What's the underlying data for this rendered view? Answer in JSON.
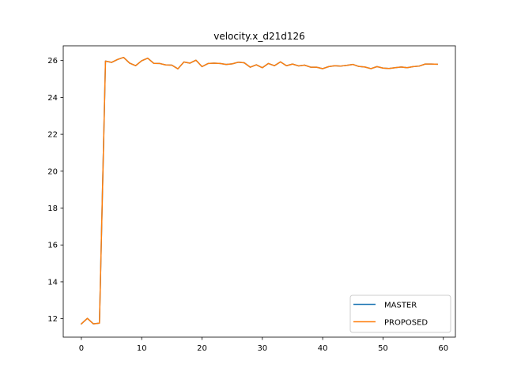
{
  "chart_data": {
    "type": "line",
    "title": "velocity.x_d21d126",
    "xlabel": "",
    "ylabel": "",
    "xlim": [
      -3,
      62
    ],
    "ylim": [
      11.0,
      26.8
    ],
    "xticks": [
      0,
      10,
      20,
      30,
      40,
      50,
      60
    ],
    "yticks": [
      12,
      14,
      16,
      18,
      20,
      22,
      24,
      26
    ],
    "grid": false,
    "legend_position": "lower-right",
    "x": [
      0,
      1,
      2,
      3,
      4,
      5,
      6,
      7,
      8,
      9,
      10,
      11,
      12,
      13,
      14,
      15,
      16,
      17,
      18,
      19,
      20,
      21,
      22,
      23,
      24,
      25,
      26,
      27,
      28,
      29,
      30,
      31,
      32,
      33,
      34,
      35,
      36,
      37,
      38,
      39,
      40,
      41,
      42,
      43,
      44,
      45,
      46,
      47,
      48,
      49,
      50,
      51,
      52,
      53,
      54,
      55,
      56,
      57,
      58,
      59
    ],
    "series": [
      {
        "name": "MASTER",
        "color": "#1f77b4",
        "values": [
          11.72,
          12.02,
          11.72,
          11.76,
          25.97,
          25.9,
          26.06,
          26.17,
          25.86,
          25.72,
          25.99,
          26.13,
          25.85,
          25.84,
          25.76,
          25.75,
          25.55,
          25.92,
          25.86,
          26.02,
          25.67,
          25.84,
          25.86,
          25.84,
          25.79,
          25.82,
          25.91,
          25.88,
          25.64,
          25.77,
          25.61,
          25.84,
          25.72,
          25.93,
          25.72,
          25.81,
          25.71,
          25.75,
          25.64,
          25.64,
          25.56,
          25.67,
          25.72,
          25.7,
          25.74,
          25.79,
          25.68,
          25.65,
          25.56,
          25.67,
          25.59,
          25.57,
          25.61,
          25.65,
          25.61,
          25.67,
          25.7,
          25.81,
          25.81,
          25.8
        ]
      },
      {
        "name": "PROPOSED",
        "color": "#ff7f0e",
        "values": [
          11.72,
          12.02,
          11.72,
          11.76,
          25.97,
          25.9,
          26.06,
          26.17,
          25.86,
          25.72,
          25.99,
          26.13,
          25.85,
          25.84,
          25.76,
          25.75,
          25.55,
          25.92,
          25.86,
          26.02,
          25.67,
          25.84,
          25.86,
          25.84,
          25.79,
          25.82,
          25.91,
          25.88,
          25.64,
          25.77,
          25.61,
          25.84,
          25.72,
          25.93,
          25.72,
          25.81,
          25.71,
          25.75,
          25.64,
          25.64,
          25.56,
          25.67,
          25.72,
          25.7,
          25.74,
          25.79,
          25.68,
          25.65,
          25.56,
          25.67,
          25.59,
          25.57,
          25.61,
          25.65,
          25.61,
          25.67,
          25.7,
          25.81,
          25.81,
          25.8
        ]
      }
    ]
  }
}
